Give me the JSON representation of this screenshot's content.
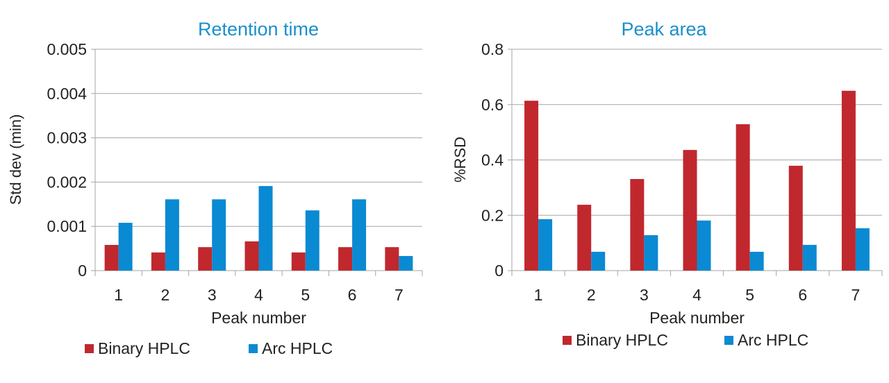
{
  "colors": {
    "binary": "#c0282e",
    "arc": "#0a8ad2",
    "title": "#1a8fcc",
    "grid": "#a6a6a6"
  },
  "chart_data": [
    {
      "type": "bar",
      "title": "Retention time",
      "xlabel": "Peak number",
      "ylabel": "Std dev (min)",
      "categories": [
        "1",
        "2",
        "3",
        "4",
        "5",
        "6",
        "7"
      ],
      "ylim": [
        0,
        0.005
      ],
      "yticks": [
        "0",
        "0.001",
        "0.002",
        "0.003",
        "0.004",
        "0.005"
      ],
      "grid": true,
      "legend_position": "bottom",
      "series": [
        {
          "name": "Binary HPLC",
          "values": [
            0.00058,
            0.00041,
            0.00053,
            0.00066,
            0.00041,
            0.00053,
            0.00053
          ]
        },
        {
          "name": "Arc HPLC",
          "values": [
            0.00108,
            0.00161,
            0.00161,
            0.00191,
            0.00136,
            0.00161,
            0.00033
          ]
        }
      ]
    },
    {
      "type": "bar",
      "title": "Peak area",
      "xlabel": "Peak number",
      "ylabel": "%RSD",
      "categories": [
        "1",
        "2",
        "3",
        "4",
        "5",
        "6",
        "7"
      ],
      "ylim": [
        0,
        0.8
      ],
      "yticks": [
        "0",
        "0.2",
        "0.4",
        "0.6",
        "0.8"
      ],
      "grid": true,
      "legend_position": "bottom",
      "series": [
        {
          "name": "Binary HPLC",
          "values": [
            0.614,
            0.238,
            0.331,
            0.436,
            0.529,
            0.379,
            0.65
          ]
        },
        {
          "name": "Arc HPLC",
          "values": [
            0.186,
            0.068,
            0.128,
            0.181,
            0.068,
            0.093,
            0.153
          ]
        }
      ]
    }
  ]
}
